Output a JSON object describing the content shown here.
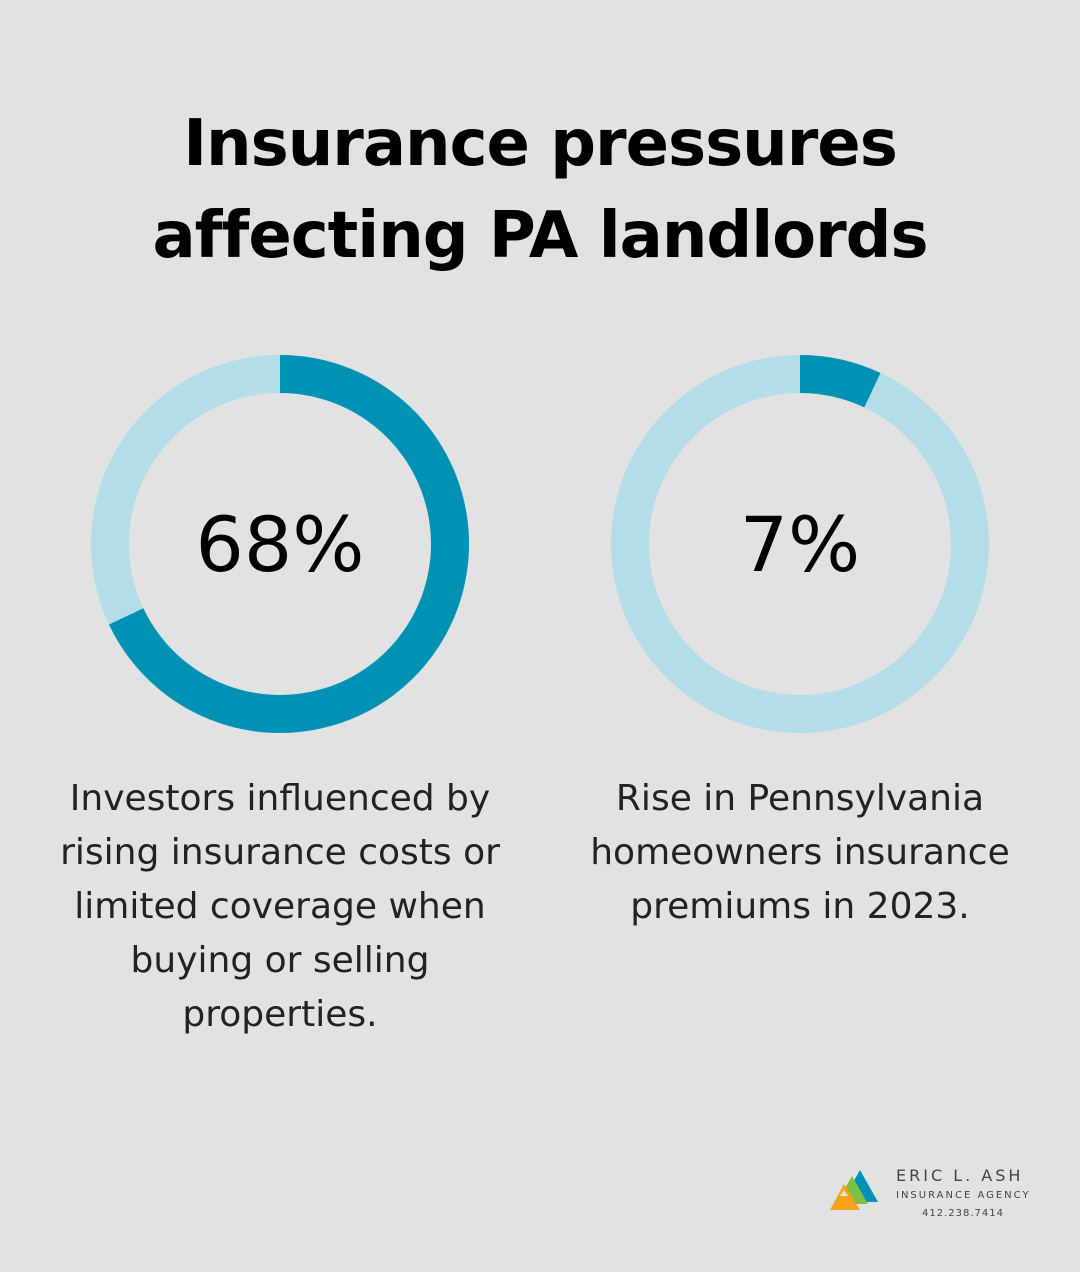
{
  "title_line1": "Insurance pressures",
  "title_line2": "affecting PA landlords",
  "colors": {
    "background": "#e1e2e1",
    "accent": "#0092b5",
    "track": "#b3dee8"
  },
  "chart_data": [
    {
      "type": "pie",
      "style": "donut",
      "value": 68,
      "label": "68%",
      "description": "Investors influenced by rising insurance costs or limited coverage when buying or selling properties."
    },
    {
      "type": "pie",
      "style": "donut",
      "value": 7,
      "label": "7%",
      "description": "Rise in Pennsylvania homeowners insurance premiums in 2023."
    }
  ],
  "logo": {
    "name": "ERIC L. ASH",
    "subtitle": "INSURANCE AGENCY",
    "phone": "412.238.7414"
  }
}
